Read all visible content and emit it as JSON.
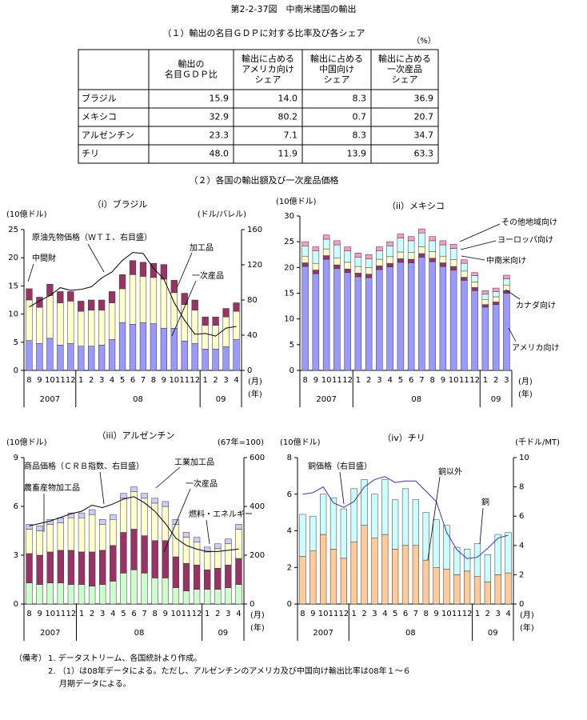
{
  "title": "第2-2-37図　中南米諸国の輸出",
  "section1": "（１）輸出の名目ＧＤＰに対する比率及び各シェア",
  "unit": "（%）",
  "table": {
    "header": [
      [
        "輸出の",
        "名目ＧＤＰ比"
      ],
      [
        "輸出に占める",
        "アメリカ向け",
        "シェア"
      ],
      [
        "輸出に占める",
        "中国向け",
        "シェア"
      ],
      [
        "輸出に占める",
        "一次産品",
        "シェア"
      ]
    ],
    "rows": [
      [
        "ブラジル",
        "15.9",
        "14.0",
        "8.3",
        "36.9"
      ],
      [
        "メキシコ",
        "32.9",
        "80.2",
        "0.7",
        "20.7"
      ],
      [
        "アルゼンチン",
        "23.3",
        "7.1",
        "8.3",
        "34.7"
      ],
      [
        "チリ",
        "48.0",
        "11.9",
        "13.9",
        "63.3"
      ]
    ]
  },
  "section2": "（２）各国の輸出額及び一次産品価格",
  "chart_data": [
    {
      "type": "bar",
      "stacked": true,
      "title": "（i）ブラジル",
      "y_label": "(10億ドル)",
      "y2_label": "(ドル/バレル)",
      "x_unit": [
        "(月)",
        "(年)"
      ],
      "categories": [
        "8",
        "9",
        "10",
        "11",
        "12",
        "1",
        "2",
        "3",
        "4",
        "5",
        "6",
        "7",
        "8",
        "9",
        "10",
        "11",
        "12",
        "1",
        "2",
        "3",
        "4"
      ],
      "year_labels": [
        "2007",
        "08",
        "09"
      ],
      "ylim": [
        0,
        25
      ],
      "yticks": [
        0,
        5,
        10,
        15,
        20,
        25
      ],
      "y2lim": [
        0,
        160
      ],
      "y2ticks": [
        0,
        40,
        80,
        120,
        160
      ],
      "series": [
        {
          "name": "一次産品",
          "color": "#9999ff",
          "values": [
            5.3,
            4.8,
            5.7,
            4.5,
            4.8,
            4.3,
            4.3,
            4.5,
            5.5,
            8.5,
            8.2,
            8.5,
            8.3,
            7.5,
            7.5,
            5.2,
            4.8,
            3.8,
            3.8,
            4.2,
            5.5
          ]
        },
        {
          "name": "加工品",
          "color": "#ffffcc",
          "values": [
            7.2,
            6.4,
            7.6,
            7.5,
            7.5,
            6.2,
            6.4,
            6.2,
            6.5,
            6,
            8.8,
            8.2,
            8.2,
            8.7,
            6.3,
            6.5,
            5.9,
            4.2,
            4.2,
            5.3,
            5
          ]
        },
        {
          "name": "中間財",
          "color": "#993366",
          "values": [
            2,
            1.8,
            2,
            2,
            1.7,
            1.8,
            1.8,
            1.8,
            2,
            2.5,
            2.5,
            2.5,
            2.5,
            2.6,
            2.2,
            2,
            1.8,
            1.5,
            1.5,
            1.5,
            1.5
          ]
        },
        {
          "name": "原油先物価格（ＷＴＩ、右目盛）",
          "type": "line",
          "axis": "y2",
          "color": "#000000",
          "values": [
            72,
            79,
            85,
            94,
            91,
            92,
            95,
            105,
            112,
            125,
            134,
            133,
            116,
            104,
            77,
            57,
            41,
            42,
            39,
            48,
            50
          ]
        }
      ]
    },
    {
      "type": "bar",
      "stacked": true,
      "title": "（ii）メキシコ",
      "y_label": "(10億ドル)",
      "x_unit": [
        "(月)",
        "(年)"
      ],
      "categories": [
        "8",
        "9",
        "10",
        "11",
        "12",
        "1",
        "2",
        "3",
        "4",
        "5",
        "6",
        "7",
        "8",
        "9",
        "10",
        "11",
        "12",
        "1",
        "2",
        "3"
      ],
      "year_labels": [
        "2007",
        "08",
        "09"
      ],
      "ylim": [
        0,
        30
      ],
      "yticks": [
        0,
        5,
        10,
        15,
        20,
        25,
        30
      ],
      "series": [
        {
          "name": "アメリカ向け",
          "color": "#9999ff",
          "values": [
            20.2,
            18.8,
            21.6,
            19.8,
            19,
            18.2,
            18,
            19.6,
            20.1,
            21,
            20.9,
            22,
            21.1,
            20.2,
            19.5,
            17.5,
            15.5,
            12.3,
            12.8,
            15
          ]
        },
        {
          "name": "カナダ向け",
          "color": "#993366",
          "values": [
            0.7,
            0.7,
            0.7,
            0.7,
            0.7,
            0.7,
            0.7,
            0.7,
            0.7,
            0.7,
            0.7,
            0.7,
            0.7,
            0.7,
            0.7,
            0.6,
            0.6,
            0.5,
            0.5,
            0.5
          ]
        },
        {
          "name": "中南米向け",
          "color": "#ffffcc",
          "values": [
            1.3,
            1.3,
            1.3,
            1.3,
            1.3,
            1.3,
            1.3,
            1.3,
            1.3,
            1.3,
            1.3,
            1.3,
            1.3,
            1.3,
            1.3,
            1.2,
            1.1,
            1,
            1,
            1.1
          ]
        },
        {
          "name": "ヨーロッパ向け",
          "color": "#ccffff",
          "values": [
            2,
            2.4,
            1.9,
            2.6,
            2.2,
            1.8,
            1.7,
            1.6,
            2.1,
            2.7,
            2.3,
            2.7,
            2.1,
            2.2,
            2.2,
            1.5,
            1.2,
            1,
            1,
            1.2
          ]
        },
        {
          "name": "その他地域向け",
          "color": "#ff99cc",
          "values": [
            0.8,
            0.8,
            0.8,
            0.8,
            0.8,
            0.8,
            0.8,
            0.8,
            0.8,
            0.8,
            0.8,
            0.8,
            0.8,
            0.8,
            0.8,
            0.7,
            0.6,
            0.7,
            0.7,
            0.7
          ]
        }
      ]
    },
    {
      "type": "bar",
      "stacked": true,
      "title": "（iii）アルゼンチン",
      "y_label": "(10億ドル)",
      "y2_label": "(67年=100)",
      "x_unit": [
        "(月)",
        "(年)"
      ],
      "categories": [
        "8",
        "9",
        "10",
        "11",
        "12",
        "1",
        "2",
        "3",
        "4",
        "5",
        "6",
        "7",
        "8",
        "9",
        "10",
        "11",
        "12",
        "1",
        "2",
        "3",
        "4"
      ],
      "year_labels": [
        "2007",
        "08",
        "09"
      ],
      "ylim": [
        0,
        9
      ],
      "yticks": [
        0,
        3,
        6,
        9
      ],
      "y2lim": [
        0,
        600
      ],
      "y2ticks": [
        0,
        200,
        400,
        600
      ],
      "series": [
        {
          "name": "一次産品",
          "color": "#ccffcc",
          "values": [
            1.3,
            1.2,
            1.3,
            1.3,
            1.2,
            1.2,
            1.1,
            1.2,
            1.4,
            1.9,
            2.1,
            1.9,
            1.6,
            1.6,
            1,
            0.8,
            0.9,
            0.9,
            0.9,
            1,
            1.2
          ]
        },
        {
          "name": "農畜産物加工品",
          "color": "#993366",
          "values": [
            1.8,
            1.8,
            1.9,
            2,
            2.1,
            2,
            2.1,
            2.1,
            2.2,
            2.5,
            2.5,
            2.3,
            2.3,
            2.3,
            1.9,
            1.7,
            1.5,
            1.2,
            1.3,
            1.4,
            1.6
          ]
        },
        {
          "name": "工業加工品",
          "color": "#ffffcc",
          "values": [
            1.5,
            1.5,
            1.7,
            1.7,
            2,
            2.1,
            2.3,
            1.6,
            1.6,
            2.1,
            2.3,
            2.3,
            2.3,
            2.1,
            2,
            1.6,
            1.4,
            1.1,
            1.2,
            1.3,
            1.8
          ]
        },
        {
          "name": "燃料・エネルギー",
          "color": "#ccccff",
          "values": [
            0.3,
            0.3,
            0.3,
            0.3,
            0.3,
            0.3,
            0.3,
            0.3,
            0.3,
            0.3,
            0.3,
            0.3,
            0.3,
            0.3,
            0.3,
            0.3,
            0.3,
            0.3,
            0.3,
            0.3,
            0.3
          ]
        },
        {
          "name": "商品価格（ＣＲＢ指数、右目盛）",
          "type": "line",
          "axis": "y2",
          "color": "#000000",
          "values": [
            320,
            330,
            340,
            355,
            370,
            380,
            405,
            395,
            410,
            430,
            440,
            415,
            380,
            330,
            270,
            240,
            225,
            215,
            215,
            220,
            225
          ]
        }
      ]
    },
    {
      "type": "bar",
      "stacked": true,
      "title": "（iv）チリ",
      "y_label": "(10億ドル)",
      "y2_label": "(千ドル/MT)",
      "x_unit": [
        "(月)",
        "(年)"
      ],
      "categories": [
        "8",
        "9",
        "10",
        "11",
        "12",
        "1",
        "2",
        "3",
        "4",
        "5",
        "6",
        "7",
        "8",
        "9",
        "10",
        "11",
        "12",
        "1",
        "2",
        "3",
        "4"
      ],
      "year_labels": [
        "2007",
        "08",
        "09"
      ],
      "ylim": [
        0,
        8
      ],
      "yticks": [
        0,
        2,
        4,
        6,
        8
      ],
      "y2lim": [
        0,
        10
      ],
      "y2ticks": [
        0,
        2,
        4,
        6,
        8,
        10
      ],
      "series": [
        {
          "name": "銅",
          "color": "#ffcc99",
          "values": [
            2.6,
            2.9,
            3.8,
            3,
            2.5,
            3.4,
            4.3,
            3.6,
            3.8,
            3,
            3.2,
            3.2,
            2.4,
            2,
            1.9,
            1.6,
            1.8,
            1.5,
            1.2,
            1.6,
            1.7
          ]
        },
        {
          "name": "銅以外",
          "color": "#ccffff",
          "values": [
            2.3,
            1.9,
            2.2,
            2.8,
            2.7,
            2.9,
            2.5,
            2.4,
            3,
            2.7,
            3.1,
            2.5,
            2.6,
            2.6,
            2.4,
            1.5,
            1.2,
            1.8,
            1.5,
            2.2,
            2.2
          ]
        },
        {
          "name": "銅価格（右目盛）",
          "type": "line",
          "axis": "y2",
          "color": "#3333cc",
          "values": [
            7.5,
            7.6,
            8,
            6.9,
            6.6,
            7,
            8,
            8.5,
            8.7,
            8.3,
            8.4,
            8.4,
            7.7,
            7,
            4.9,
            3.7,
            3.1,
            3.2,
            3.8,
            4.5,
            4.7
          ]
        }
      ]
    }
  ],
  "notes": {
    "label": "（備考）",
    "lines": [
      "1. データストリーム、各国統計より作成。",
      "2. （1）は08年データによる。ただし、アルゼンチンのアメリカ及び中国向け輸出比率は08年１～６",
      "月期データによる。"
    ]
  }
}
